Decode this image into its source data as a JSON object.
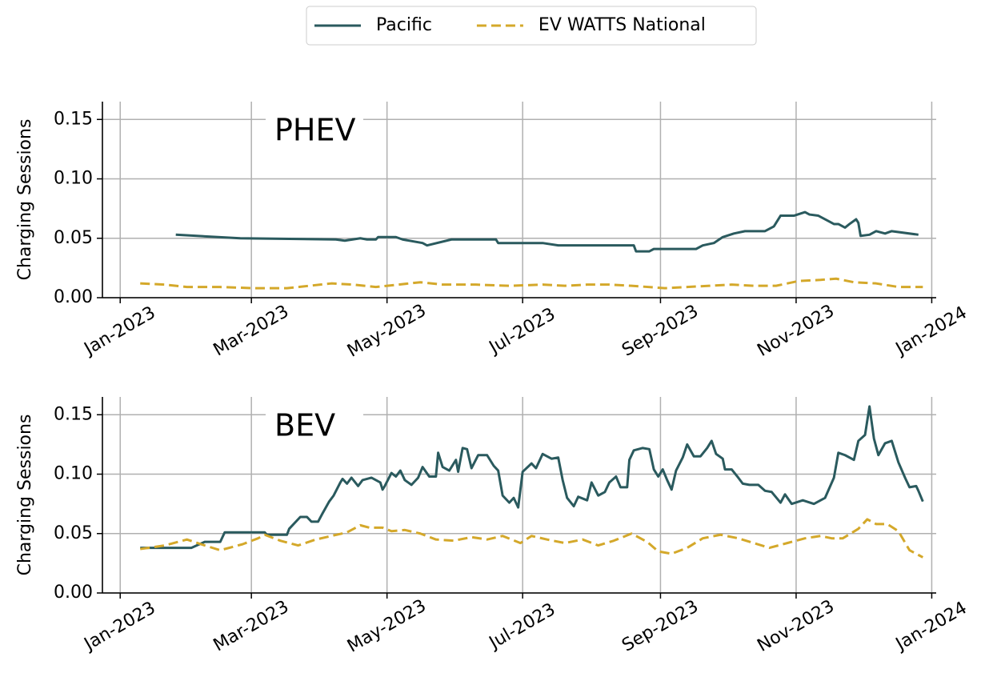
{
  "chart_data": [
    {
      "type": "line",
      "title": "PHEV",
      "ylabel": "Charging Sessions",
      "grid": true,
      "legend": "upper center",
      "xlim": [
        -8,
        367
      ],
      "xticks": [
        {
          "value": 0,
          "label": "Jan-2023"
        },
        {
          "value": 59,
          "label": "Mar-2023"
        },
        {
          "value": 120,
          "label": "May-2023"
        },
        {
          "value": 181,
          "label": "Jul-2023"
        },
        {
          "value": 243,
          "label": "Sep-2023"
        },
        {
          "value": 304,
          "label": "Nov-2023"
        },
        {
          "value": 365,
          "label": "Jan-2024"
        }
      ],
      "ylim": [
        0,
        0.165
      ],
      "yticks": [
        {
          "value": 0,
          "label": "0.00"
        },
        {
          "value": 0.05,
          "label": "0.05"
        },
        {
          "value": 0.1,
          "label": "0.10"
        },
        {
          "value": 0.15,
          "label": "0.15"
        }
      ],
      "series": [
        {
          "name": "Pacific",
          "color": "#2a5a5e",
          "linestyle": "solid",
          "x": [
            25,
            54,
            97,
            101,
            108,
            111,
            115,
            116,
            124,
            127,
            136,
            138,
            149,
            169,
            170,
            190,
            197,
            231,
            232,
            238,
            240,
            259,
            262,
            267,
            271,
            276,
            281,
            290,
            294,
            297,
            303,
            308,
            310,
            314,
            319,
            321,
            323,
            326,
            328,
            331,
            332,
            333,
            337,
            340,
            344,
            347,
            359
          ],
          "values": [
            0.053,
            0.05,
            0.049,
            0.048,
            0.05,
            0.049,
            0.049,
            0.051,
            0.051,
            0.049,
            0.046,
            0.044,
            0.049,
            0.049,
            0.046,
            0.046,
            0.044,
            0.044,
            0.039,
            0.039,
            0.041,
            0.041,
            0.044,
            0.046,
            0.051,
            0.054,
            0.056,
            0.056,
            0.06,
            0.069,
            0.069,
            0.072,
            0.07,
            0.069,
            0.064,
            0.062,
            0.062,
            0.059,
            0.062,
            0.066,
            0.063,
            0.052,
            0.053,
            0.056,
            0.054,
            0.056,
            0.053
          ]
        },
        {
          "name": "EV WATTS National",
          "color": "#d4a82a",
          "linestyle": "dashed",
          "x": [
            9,
            20,
            30,
            45,
            60,
            75,
            85,
            95,
            105,
            115,
            125,
            135,
            145,
            160,
            175,
            190,
            200,
            210,
            220,
            230,
            245,
            255,
            265,
            275,
            285,
            295,
            305,
            315,
            322,
            330,
            340,
            350,
            361
          ],
          "values": [
            0.012,
            0.011,
            0.009,
            0.009,
            0.008,
            0.008,
            0.01,
            0.012,
            0.011,
            0.009,
            0.011,
            0.013,
            0.011,
            0.011,
            0.01,
            0.011,
            0.01,
            0.011,
            0.011,
            0.01,
            0.008,
            0.009,
            0.01,
            0.011,
            0.01,
            0.01,
            0.014,
            0.015,
            0.016,
            0.013,
            0.012,
            0.009,
            0.009
          ]
        }
      ]
    },
    {
      "type": "line",
      "title": "BEV",
      "ylabel": "Charging Sessions",
      "grid": true,
      "xlim": [
        -8,
        367
      ],
      "xticks": [
        {
          "value": 0,
          "label": "Jan-2023"
        },
        {
          "value": 59,
          "label": "Mar-2023"
        },
        {
          "value": 120,
          "label": "May-2023"
        },
        {
          "value": 181,
          "label": "Jul-2023"
        },
        {
          "value": 243,
          "label": "Sep-2023"
        },
        {
          "value": 304,
          "label": "Nov-2023"
        },
        {
          "value": 365,
          "label": "Jan-2024"
        }
      ],
      "ylim": [
        0,
        0.165
      ],
      "yticks": [
        {
          "value": 0,
          "label": "0.00"
        },
        {
          "value": 0.05,
          "label": "0.05"
        },
        {
          "value": 0.1,
          "label": "0.10"
        },
        {
          "value": 0.15,
          "label": "0.15"
        }
      ],
      "series": [
        {
          "color": "#2a5a5e",
          "linestyle": "solid",
          "x": [
            9,
            32,
            38,
            45,
            47,
            65,
            66,
            75,
            76,
            81,
            84,
            86,
            89,
            91,
            94,
            96,
            99,
            100,
            102,
            104,
            107,
            109,
            113,
            117,
            118,
            119,
            122,
            124,
            126,
            128,
            131,
            134,
            136,
            139,
            142,
            143,
            145,
            148,
            151,
            152,
            154,
            156,
            158,
            161,
            165,
            168,
            170,
            172,
            175,
            177,
            179,
            181,
            185,
            187,
            190,
            194,
            197,
            199,
            201,
            204,
            206,
            210,
            212,
            215,
            218,
            220,
            223,
            225,
            228,
            229,
            231,
            235,
            238,
            240,
            242,
            244,
            246,
            248,
            250,
            253,
            255,
            258,
            261,
            264,
            266,
            268,
            271,
            272,
            275,
            278,
            280,
            283,
            287,
            290,
            293,
            297,
            299,
            302,
            307,
            312,
            317,
            321,
            323,
            326,
            330,
            332,
            335,
            337,
            339,
            341,
            344,
            347,
            350,
            353,
            355,
            358,
            359,
            361
          ],
          "values": [
            0.038,
            0.038,
            0.043,
            0.043,
            0.051,
            0.051,
            0.049,
            0.049,
            0.054,
            0.064,
            0.064,
            0.06,
            0.06,
            0.067,
            0.077,
            0.082,
            0.093,
            0.096,
            0.092,
            0.097,
            0.09,
            0.095,
            0.097,
            0.093,
            0.087,
            0.09,
            0.101,
            0.098,
            0.103,
            0.095,
            0.091,
            0.097,
            0.106,
            0.098,
            0.098,
            0.118,
            0.106,
            0.103,
            0.112,
            0.102,
            0.122,
            0.121,
            0.105,
            0.116,
            0.116,
            0.107,
            0.103,
            0.082,
            0.076,
            0.08,
            0.072,
            0.102,
            0.109,
            0.105,
            0.117,
            0.113,
            0.114,
            0.095,
            0.08,
            0.073,
            0.081,
            0.078,
            0.093,
            0.082,
            0.085,
            0.093,
            0.098,
            0.089,
            0.089,
            0.112,
            0.12,
            0.122,
            0.121,
            0.104,
            0.098,
            0.104,
            0.095,
            0.087,
            0.103,
            0.114,
            0.125,
            0.115,
            0.115,
            0.122,
            0.128,
            0.117,
            0.113,
            0.104,
            0.104,
            0.097,
            0.092,
            0.091,
            0.091,
            0.086,
            0.085,
            0.076,
            0.083,
            0.075,
            0.078,
            0.075,
            0.08,
            0.097,
            0.118,
            0.116,
            0.112,
            0.128,
            0.133,
            0.157,
            0.13,
            0.116,
            0.126,
            0.128,
            0.11,
            0.097,
            0.089,
            0.09,
            0.086,
            0.077
          ]
        },
        {
          "color": "#d4a82a",
          "linestyle": "dashed",
          "x": [
            9,
            20,
            30,
            38,
            45,
            55,
            62,
            65,
            72,
            80,
            88,
            95,
            102,
            108,
            112,
            118,
            122,
            128,
            135,
            142,
            150,
            158,
            165,
            172,
            180,
            185,
            192,
            200,
            208,
            215,
            222,
            230,
            237,
            242,
            248,
            255,
            262,
            270,
            278,
            285,
            292,
            300,
            308,
            315,
            320,
            325,
            332,
            336,
            340,
            345,
            350,
            355,
            358,
            361
          ],
          "values": [
            0.037,
            0.04,
            0.045,
            0.04,
            0.036,
            0.041,
            0.046,
            0.049,
            0.044,
            0.04,
            0.045,
            0.048,
            0.051,
            0.057,
            0.055,
            0.055,
            0.052,
            0.053,
            0.05,
            0.045,
            0.044,
            0.047,
            0.045,
            0.048,
            0.042,
            0.048,
            0.045,
            0.042,
            0.045,
            0.04,
            0.044,
            0.05,
            0.043,
            0.035,
            0.033,
            0.038,
            0.046,
            0.049,
            0.046,
            0.042,
            0.038,
            0.042,
            0.046,
            0.048,
            0.046,
            0.046,
            0.054,
            0.062,
            0.058,
            0.058,
            0.052,
            0.036,
            0.033,
            0.03
          ]
        }
      ]
    }
  ]
}
